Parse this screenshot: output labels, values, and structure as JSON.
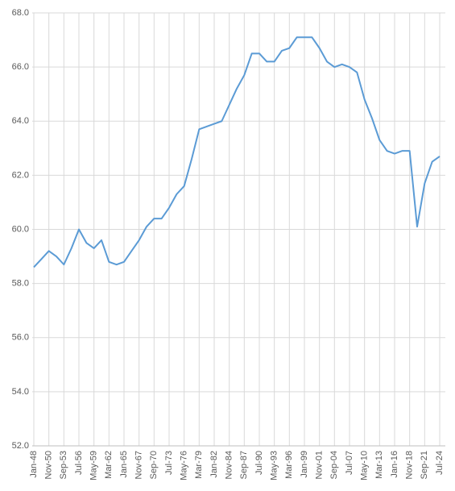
{
  "chart_data": {
    "type": "line",
    "categories": [
      "Jan-48",
      null,
      "Nov-50",
      null,
      "Sep-53",
      null,
      "Jul-56",
      null,
      "May-59",
      null,
      "Mar-62",
      null,
      "Jan-65",
      null,
      "Nov-67",
      null,
      "Sep-70",
      null,
      "Jul-73",
      null,
      "May-76",
      null,
      "Mar-79",
      null,
      "Jan-82",
      null,
      "Nov-84",
      null,
      "Sep-87",
      null,
      "Jul-90",
      null,
      "May-93",
      null,
      "Mar-96",
      null,
      "Jan-99",
      null,
      "Nov-01",
      null,
      "Sep-04",
      null,
      "Jul-07",
      null,
      "May-10",
      null,
      "Mar-13",
      null,
      "Jan-16",
      null,
      "Nov-18",
      null,
      "Sep-21",
      null,
      "Jul-24"
    ],
    "values": [
      58.6,
      58.9,
      59.2,
      59.0,
      58.7,
      59.3,
      60.0,
      59.5,
      59.3,
      59.6,
      58.8,
      58.7,
      58.8,
      59.2,
      59.6,
      60.1,
      60.4,
      60.4,
      60.8,
      61.3,
      61.6,
      62.6,
      63.7,
      63.8,
      63.9,
      64.0,
      64.6,
      65.2,
      65.7,
      66.5,
      66.5,
      66.2,
      66.2,
      66.6,
      66.7,
      67.1,
      67.1,
      67.1,
      66.7,
      66.2,
      66.0,
      66.1,
      66.0,
      65.8,
      64.8,
      64.1,
      63.3,
      62.9,
      62.8,
      62.9,
      62.9,
      60.1,
      61.7,
      62.5,
      62.7
    ],
    "color": "#5b9bd5",
    "ylim": [
      52,
      68
    ],
    "yticks": [
      {
        "value": 52,
        "label": "52.0"
      },
      {
        "value": 54,
        "label": "54.0"
      },
      {
        "value": 56,
        "label": "56.0"
      },
      {
        "value": 58,
        "label": "58.0"
      },
      {
        "value": 60,
        "label": "60.0"
      },
      {
        "value": 62,
        "label": "62.0"
      },
      {
        "value": 64,
        "label": "64.0"
      },
      {
        "value": 66,
        "label": "66.0"
      },
      {
        "value": 68,
        "label": "68.0"
      }
    ],
    "grid": true
  }
}
